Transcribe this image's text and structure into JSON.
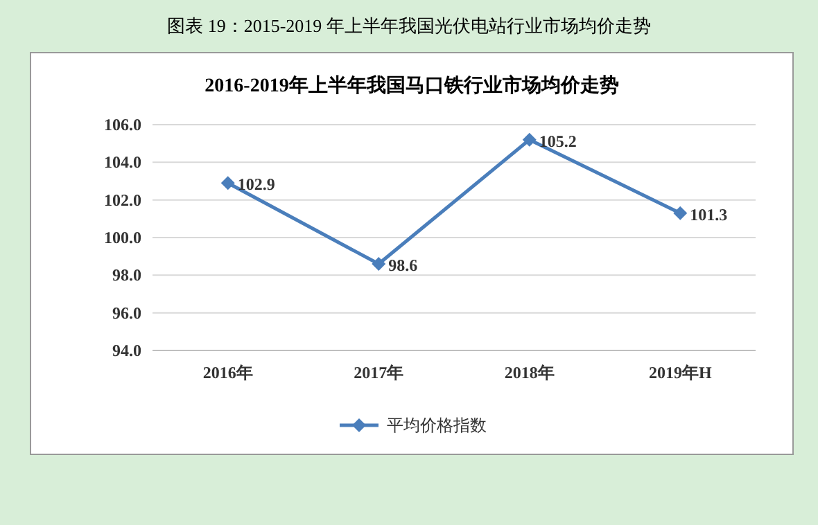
{
  "chart_data": {
    "type": "line",
    "title": "图表  19：2015-2019 年上半年我国光伏电站行业市场均价走势",
    "subtitle": "2016-2019年上半年我国马口铁行业市场均价走势",
    "categories": [
      "2016年",
      "2017年",
      "2018年",
      "2019年H"
    ],
    "series": [
      {
        "name": "平均价格指数",
        "color": "#4a7ebb",
        "values": [
          102.9,
          98.6,
          105.2,
          101.3
        ]
      }
    ],
    "ylim": [
      94,
      106
    ],
    "yticks": [
      {
        "value": 94,
        "label": "94.0"
      },
      {
        "value": 96,
        "label": "96.0"
      },
      {
        "value": 98,
        "label": "98.0"
      },
      {
        "value": 100,
        "label": "100.0"
      },
      {
        "value": 102,
        "label": "102.0"
      },
      {
        "value": 104,
        "label": "104.0"
      },
      {
        "value": 106,
        "label": "106.0"
      }
    ],
    "grid": "y",
    "legend": "bottom",
    "marker": "diamond",
    "data_labels": true
  }
}
